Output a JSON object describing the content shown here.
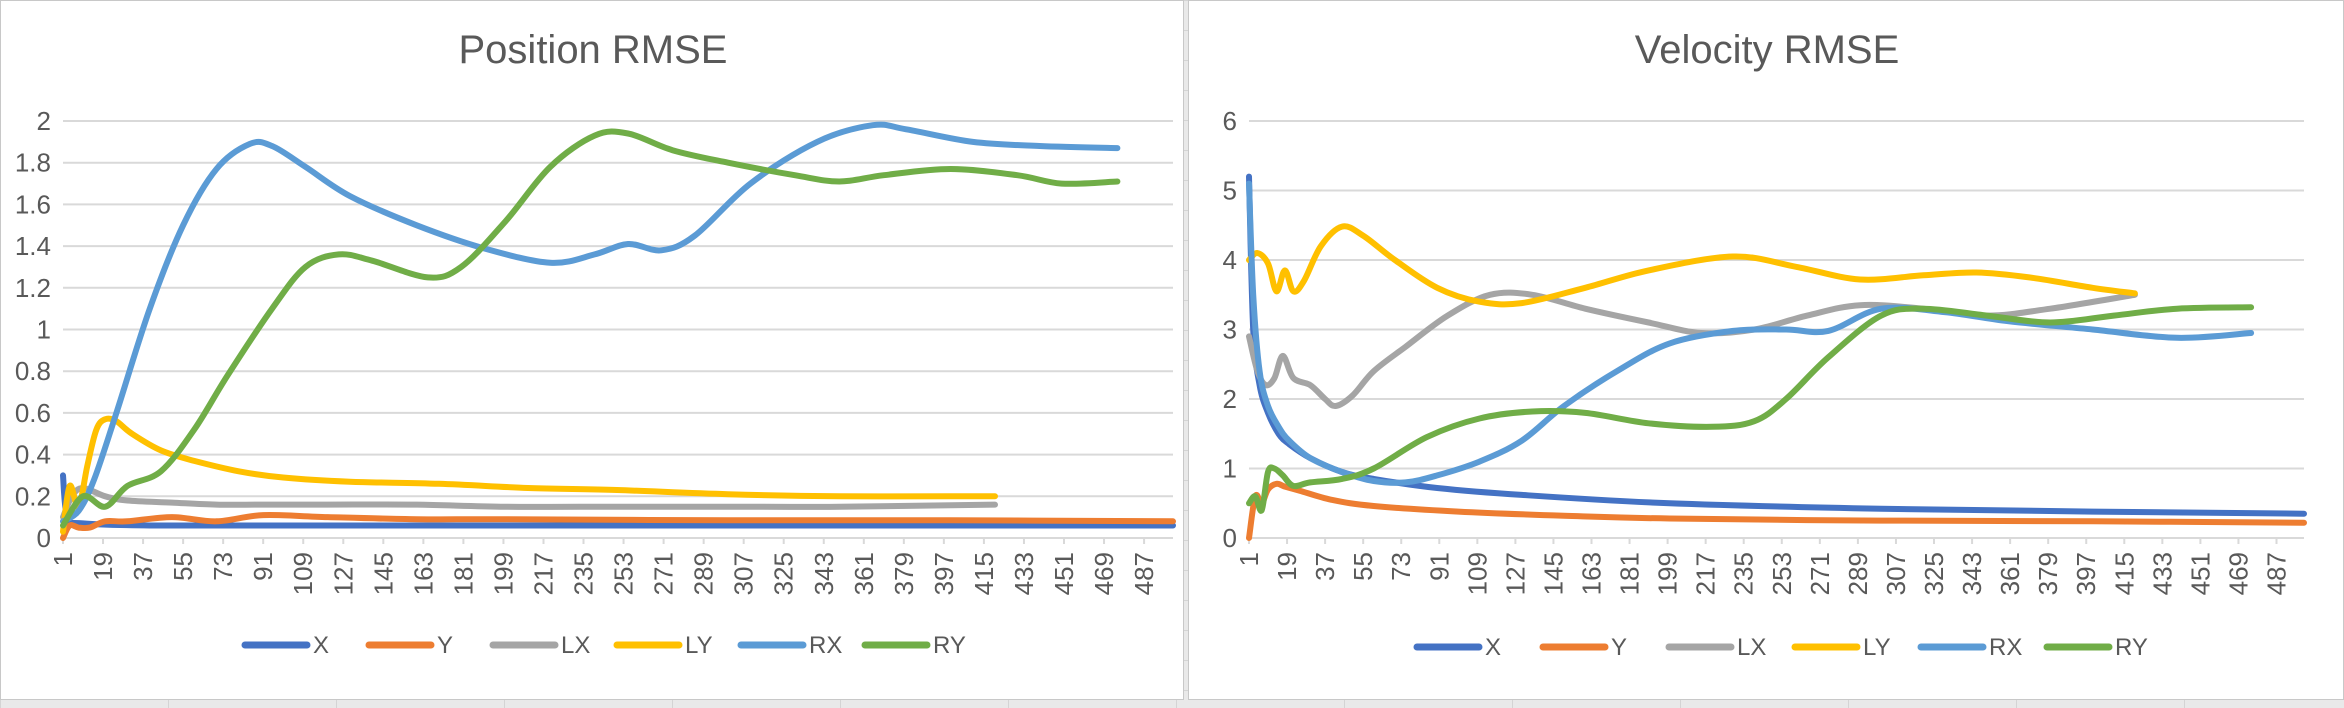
{
  "chart_data": [
    {
      "type": "line",
      "title": "Position RMSE",
      "xlabel": "",
      "ylabel": "",
      "ylim": [
        0,
        2
      ],
      "yticks": [
        "0",
        "0.2",
        "0.4",
        "0.6",
        "0.8",
        "1",
        "1.2",
        "1.4",
        "1.6",
        "1.8",
        "2"
      ],
      "xlim": [
        1,
        500
      ],
      "xticks": [
        "1",
        "19",
        "37",
        "55",
        "73",
        "91",
        "109",
        "127",
        "145",
        "163",
        "181",
        "199",
        "217",
        "235",
        "253",
        "271",
        "289",
        "307",
        "325",
        "343",
        "361",
        "379",
        "397",
        "415",
        "433",
        "451",
        "469",
        "487"
      ],
      "grid": true,
      "legend_position": "bottom",
      "series": [
        {
          "name": "X",
          "color": "#4472c4",
          "x": [
            1,
            3,
            10,
            40,
            100,
            200,
            300,
            400,
            500
          ],
          "y": [
            0.3,
            0.1,
            0.07,
            0.06,
            0.06,
            0.06,
            0.06,
            0.06,
            0.06
          ]
        },
        {
          "name": "Y",
          "color": "#ed7d31",
          "x": [
            1,
            4,
            8,
            13,
            20,
            30,
            50,
            70,
            91,
            120,
            160,
            200,
            300,
            400,
            500
          ],
          "y": [
            0.0,
            0.06,
            0.05,
            0.05,
            0.08,
            0.08,
            0.1,
            0.08,
            0.11,
            0.1,
            0.09,
            0.09,
            0.085,
            0.085,
            0.08
          ]
        },
        {
          "name": "LX",
          "color": "#a5a5a5",
          "x": [
            1,
            5,
            10,
            20,
            30,
            50,
            70,
            91,
            120,
            160,
            200,
            250,
            300,
            350,
            420
          ],
          "y": [
            0.1,
            0.2,
            0.24,
            0.2,
            0.18,
            0.17,
            0.16,
            0.16,
            0.16,
            0.16,
            0.15,
            0.15,
            0.15,
            0.15,
            0.16
          ]
        },
        {
          "name": "LY",
          "color": "#ffc000",
          "x": [
            1,
            4,
            8,
            12,
            16,
            20,
            25,
            32,
            45,
            60,
            80,
            100,
            130,
            170,
            210,
            250,
            300,
            350,
            400,
            420
          ],
          "y": [
            0.03,
            0.25,
            0.15,
            0.35,
            0.52,
            0.57,
            0.56,
            0.5,
            0.42,
            0.37,
            0.32,
            0.29,
            0.27,
            0.26,
            0.24,
            0.23,
            0.21,
            0.2,
            0.2,
            0.2
          ]
        },
        {
          "name": "RX",
          "color": "#5b9bd5",
          "x": [
            1,
            8,
            15,
            25,
            40,
            55,
            70,
            85,
            95,
            110,
            130,
            160,
            190,
            220,
            240,
            255,
            270,
            285,
            310,
            340,
            365,
            380,
            410,
            440,
            475
          ],
          "y": [
            0.08,
            0.13,
            0.28,
            0.6,
            1.1,
            1.5,
            1.77,
            1.89,
            1.88,
            1.78,
            1.64,
            1.5,
            1.39,
            1.32,
            1.36,
            1.41,
            1.38,
            1.45,
            1.7,
            1.9,
            1.98,
            1.96,
            1.9,
            1.88,
            1.87
          ]
        },
        {
          "name": "RY",
          "color": "#70ad47",
          "x": [
            1,
            10,
            20,
            30,
            45,
            60,
            75,
            95,
            110,
            125,
            140,
            165,
            180,
            200,
            220,
            240,
            255,
            275,
            300,
            330,
            350,
            370,
            400,
            430,
            450,
            475
          ],
          "y": [
            0.06,
            0.2,
            0.15,
            0.25,
            0.32,
            0.52,
            0.78,
            1.1,
            1.3,
            1.36,
            1.33,
            1.25,
            1.3,
            1.52,
            1.78,
            1.93,
            1.94,
            1.86,
            1.8,
            1.74,
            1.71,
            1.74,
            1.77,
            1.74,
            1.7,
            1.71
          ]
        }
      ]
    },
    {
      "type": "line",
      "title": "Velocity RMSE",
      "xlabel": "",
      "ylabel": "",
      "ylim": [
        0,
        6
      ],
      "yticks": [
        "0",
        "1",
        "2",
        "3",
        "4",
        "5",
        "6"
      ],
      "xlim": [
        1,
        500
      ],
      "xticks": [
        "1",
        "19",
        "37",
        "55",
        "73",
        "91",
        "109",
        "127",
        "145",
        "163",
        "181",
        "199",
        "217",
        "235",
        "253",
        "271",
        "289",
        "307",
        "325",
        "343",
        "361",
        "379",
        "397",
        "415",
        "433",
        "451",
        "469",
        "487"
      ],
      "grid": true,
      "legend_position": "bottom",
      "series": [
        {
          "name": "X",
          "color": "#4472c4",
          "x": [
            1,
            3,
            6,
            10,
            15,
            20,
            30,
            45,
            60,
            90,
            130,
            200,
            300,
            400,
            500
          ],
          "y": [
            5.2,
            3.0,
            2.2,
            1.8,
            1.5,
            1.35,
            1.15,
            0.95,
            0.85,
            0.72,
            0.62,
            0.5,
            0.42,
            0.38,
            0.35
          ]
        },
        {
          "name": "Y",
          "color": "#ed7d31",
          "x": [
            1,
            4,
            7,
            10,
            14,
            18,
            25,
            40,
            60,
            100,
            150,
            200,
            300,
            400,
            500
          ],
          "y": [
            0.0,
            0.6,
            0.5,
            0.7,
            0.78,
            0.74,
            0.68,
            0.55,
            0.46,
            0.38,
            0.32,
            0.28,
            0.25,
            0.24,
            0.22
          ]
        },
        {
          "name": "LX",
          "color": "#a5a5a5",
          "x": [
            1,
            5,
            9,
            13,
            17,
            22,
            30,
            37,
            42,
            50,
            60,
            75,
            95,
            115,
            135,
            160,
            190,
            215,
            240,
            265,
            290,
            320,
            350,
            380,
            420
          ],
          "y": [
            2.9,
            2.4,
            2.2,
            2.3,
            2.62,
            2.3,
            2.2,
            2.0,
            1.9,
            2.05,
            2.4,
            2.75,
            3.2,
            3.5,
            3.5,
            3.3,
            3.1,
            2.95,
            3.0,
            3.2,
            3.35,
            3.3,
            3.2,
            3.3,
            3.5
          ]
        },
        {
          "name": "LY",
          "color": "#ffc000",
          "x": [
            1,
            5,
            10,
            14,
            18,
            22,
            27,
            35,
            45,
            55,
            70,
            90,
            110,
            130,
            160,
            190,
            230,
            260,
            290,
            320,
            345,
            370,
            400,
            420
          ],
          "y": [
            4.0,
            4.1,
            3.95,
            3.55,
            3.85,
            3.55,
            3.7,
            4.2,
            4.48,
            4.35,
            4.0,
            3.6,
            3.4,
            3.38,
            3.6,
            3.85,
            4.05,
            3.9,
            3.72,
            3.78,
            3.82,
            3.75,
            3.6,
            3.52
          ]
        },
        {
          "name": "RX",
          "color": "#5b9bd5",
          "x": [
            1,
            3,
            6,
            10,
            15,
            20,
            30,
            45,
            60,
            75,
            90,
            110,
            130,
            150,
            175,
            200,
            230,
            255,
            275,
            300,
            330,
            360,
            400,
            440,
            475
          ],
          "y": [
            5.1,
            3.5,
            2.4,
            1.9,
            1.6,
            1.4,
            1.15,
            0.95,
            0.82,
            0.8,
            0.9,
            1.1,
            1.4,
            1.9,
            2.4,
            2.8,
            2.98,
            3.0,
            2.98,
            3.3,
            3.25,
            3.12,
            3.0,
            2.88,
            2.95
          ]
        },
        {
          "name": "RY",
          "color": "#70ad47",
          "x": [
            1,
            4,
            7,
            10,
            13,
            17,
            22,
            30,
            45,
            60,
            85,
            110,
            135,
            160,
            190,
            220,
            240,
            255,
            275,
            300,
            320,
            350,
            380,
            410,
            440,
            475
          ],
          "y": [
            0.5,
            0.6,
            0.4,
            0.95,
            1.0,
            0.9,
            0.75,
            0.8,
            0.85,
            1.0,
            1.45,
            1.72,
            1.82,
            1.8,
            1.65,
            1.6,
            1.68,
            2.0,
            2.6,
            3.2,
            3.3,
            3.2,
            3.1,
            3.2,
            3.3,
            3.32
          ]
        }
      ]
    }
  ]
}
